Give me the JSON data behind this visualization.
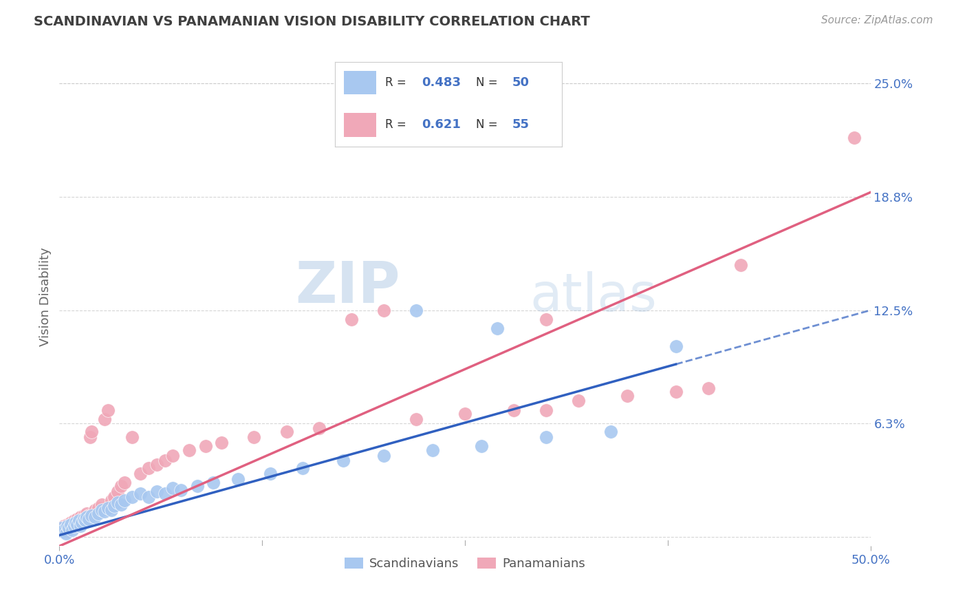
{
  "title": "SCANDINAVIAN VS PANAMANIAN VISION DISABILITY CORRELATION CHART",
  "source": "Source: ZipAtlas.com",
  "ylabel": "Vision Disability",
  "xlim": [
    0.0,
    0.5
  ],
  "ylim": [
    -0.005,
    0.27
  ],
  "yticks": [
    0.0,
    0.0625,
    0.125,
    0.1875,
    0.25
  ],
  "ytick_labels": [
    "",
    "6.3%",
    "12.5%",
    "18.8%",
    "25.0%"
  ],
  "blue_color": "#a8c8f0",
  "pink_color": "#f0a8b8",
  "blue_line_color": "#3060c0",
  "pink_line_color": "#e06080",
  "legend_R_blue": "0.483",
  "legend_N_blue": "50",
  "legend_R_pink": "0.621",
  "legend_N_pink": "55",
  "legend_label_blue": "Scandinavians",
  "legend_label_pink": "Panamanians",
  "watermark_zip": "ZIP",
  "watermark_atlas": "atlas",
  "background_color": "#ffffff",
  "grid_color": "#cccccc",
  "axis_label_color": "#4472c4",
  "title_color": "#404040",
  "blue_scatter": [
    [
      0.001,
      0.005
    ],
    [
      0.002,
      0.003
    ],
    [
      0.003,
      0.004
    ],
    [
      0.004,
      0.002
    ],
    [
      0.005,
      0.006
    ],
    [
      0.006,
      0.005
    ],
    [
      0.007,
      0.007
    ],
    [
      0.008,
      0.004
    ],
    [
      0.009,
      0.006
    ],
    [
      0.01,
      0.008
    ],
    [
      0.011,
      0.007
    ],
    [
      0.012,
      0.009
    ],
    [
      0.013,
      0.006
    ],
    [
      0.014,
      0.008
    ],
    [
      0.015,
      0.01
    ],
    [
      0.016,
      0.009
    ],
    [
      0.017,
      0.011
    ],
    [
      0.018,
      0.01
    ],
    [
      0.02,
      0.012
    ],
    [
      0.022,
      0.011
    ],
    [
      0.024,
      0.013
    ],
    [
      0.026,
      0.015
    ],
    [
      0.028,
      0.014
    ],
    [
      0.03,
      0.016
    ],
    [
      0.032,
      0.015
    ],
    [
      0.034,
      0.017
    ],
    [
      0.036,
      0.019
    ],
    [
      0.038,
      0.018
    ],
    [
      0.04,
      0.02
    ],
    [
      0.045,
      0.022
    ],
    [
      0.05,
      0.024
    ],
    [
      0.055,
      0.022
    ],
    [
      0.06,
      0.025
    ],
    [
      0.065,
      0.024
    ],
    [
      0.07,
      0.027
    ],
    [
      0.075,
      0.026
    ],
    [
      0.085,
      0.028
    ],
    [
      0.095,
      0.03
    ],
    [
      0.11,
      0.032
    ],
    [
      0.13,
      0.035
    ],
    [
      0.15,
      0.038
    ],
    [
      0.175,
      0.042
    ],
    [
      0.2,
      0.045
    ],
    [
      0.23,
      0.048
    ],
    [
      0.26,
      0.05
    ],
    [
      0.3,
      0.055
    ],
    [
      0.34,
      0.058
    ],
    [
      0.38,
      0.105
    ],
    [
      0.22,
      0.125
    ],
    [
      0.27,
      0.115
    ]
  ],
  "pink_scatter": [
    [
      0.001,
      0.005
    ],
    [
      0.002,
      0.004
    ],
    [
      0.003,
      0.006
    ],
    [
      0.004,
      0.003
    ],
    [
      0.005,
      0.007
    ],
    [
      0.006,
      0.005
    ],
    [
      0.007,
      0.008
    ],
    [
      0.008,
      0.006
    ],
    [
      0.009,
      0.009
    ],
    [
      0.01,
      0.007
    ],
    [
      0.011,
      0.01
    ],
    [
      0.012,
      0.008
    ],
    [
      0.013,
      0.011
    ],
    [
      0.014,
      0.009
    ],
    [
      0.015,
      0.012
    ],
    [
      0.016,
      0.01
    ],
    [
      0.017,
      0.013
    ],
    [
      0.018,
      0.012
    ],
    [
      0.019,
      0.055
    ],
    [
      0.02,
      0.058
    ],
    [
      0.022,
      0.015
    ],
    [
      0.024,
      0.016
    ],
    [
      0.026,
      0.018
    ],
    [
      0.028,
      0.065
    ],
    [
      0.03,
      0.07
    ],
    [
      0.032,
      0.02
    ],
    [
      0.034,
      0.022
    ],
    [
      0.036,
      0.025
    ],
    [
      0.038,
      0.028
    ],
    [
      0.04,
      0.03
    ],
    [
      0.045,
      0.055
    ],
    [
      0.05,
      0.035
    ],
    [
      0.055,
      0.038
    ],
    [
      0.06,
      0.04
    ],
    [
      0.065,
      0.042
    ],
    [
      0.07,
      0.045
    ],
    [
      0.08,
      0.048
    ],
    [
      0.09,
      0.05
    ],
    [
      0.1,
      0.052
    ],
    [
      0.12,
      0.055
    ],
    [
      0.14,
      0.058
    ],
    [
      0.16,
      0.06
    ],
    [
      0.18,
      0.12
    ],
    [
      0.2,
      0.125
    ],
    [
      0.22,
      0.065
    ],
    [
      0.25,
      0.068
    ],
    [
      0.28,
      0.07
    ],
    [
      0.3,
      0.12
    ],
    [
      0.32,
      0.075
    ],
    [
      0.35,
      0.078
    ],
    [
      0.38,
      0.08
    ],
    [
      0.4,
      0.082
    ],
    [
      0.42,
      0.15
    ],
    [
      0.3,
      0.07
    ],
    [
      0.49,
      0.22
    ]
  ]
}
